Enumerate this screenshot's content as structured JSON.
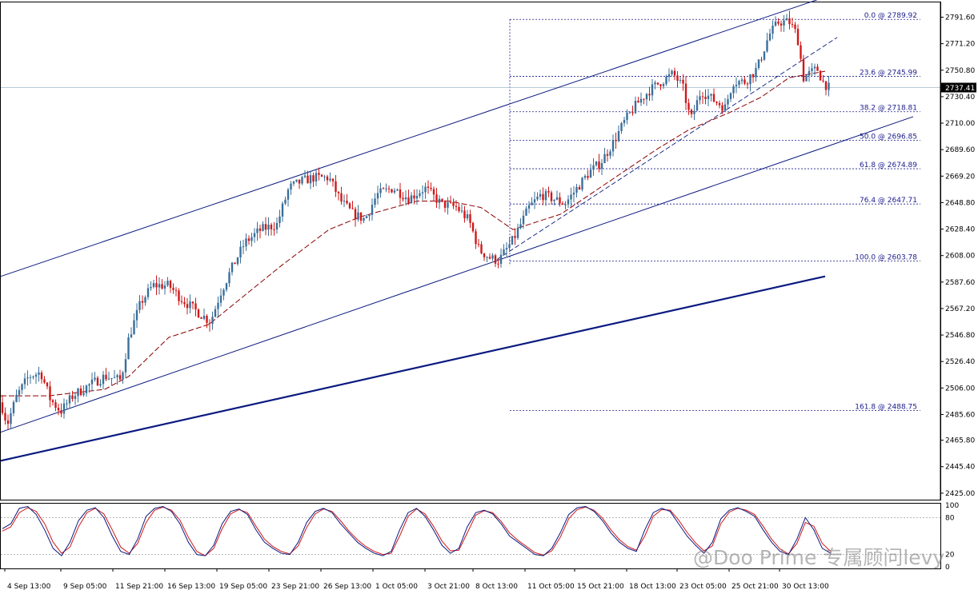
{
  "chart_data": {
    "type": "candlestick",
    "title": "",
    "y_ticks": [
      2791.6,
      2771.2,
      2750.8,
      2730.4,
      2710.0,
      2689.6,
      2669.2,
      2648.8,
      2628.4,
      2608.0,
      2587.6,
      2567.2,
      2546.8,
      2526.4,
      2506.0,
      2485.6,
      2465.8,
      2445.4,
      2425.0
    ],
    "y_range": [
      2420.0,
      2803.0
    ],
    "x_tick_labels": [
      "4 Sep 13:00",
      "9 Sep 05:00",
      "11 Sep 21:00",
      "16 Sep 13:00",
      "19 Sep 05:00",
      "23 Sep 21:00",
      "26 Sep 13:00",
      "1 Oct 05:00",
      "3 Oct 21:00",
      "8 Oct 13:00",
      "11 Oct 05:00",
      "15 Oct 21:00",
      "18 Oct 13:00",
      "23 Oct 05:00",
      "25 Oct 21:00",
      "30 Oct 13:00"
    ],
    "current_price": "2737.41",
    "current_price_value": 2737.41,
    "fibonacci_levels": [
      {
        "label": "0.0 @ 2789.92",
        "price": 2789.92
      },
      {
        "label": "23.6 @ 2745.99",
        "price": 2745.99
      },
      {
        "label": "38.2 @ 2718.81",
        "price": 2718.81
      },
      {
        "label": "50.0 @ 2696.85",
        "price": 2696.85
      },
      {
        "label": "61.8 @ 2674.89",
        "price": 2674.89
      },
      {
        "label": "76.4 @ 2647.71",
        "price": 2647.71
      },
      {
        "label": "100.0 @ 2603.78",
        "price": 2603.78
      },
      {
        "label": "161.8 @ 2488.75",
        "price": 2488.75
      }
    ],
    "price_path": [
      [
        0,
        2495
      ],
      [
        8,
        2478
      ],
      [
        20,
        2500
      ],
      [
        35,
        2515
      ],
      [
        50,
        2518
      ],
      [
        62,
        2497
      ],
      [
        75,
        2488
      ],
      [
        90,
        2500
      ],
      [
        110,
        2508
      ],
      [
        130,
        2515
      ],
      [
        150,
        2512
      ],
      [
        160,
        2545
      ],
      [
        175,
        2572
      ],
      [
        190,
        2585
      ],
      [
        210,
        2585
      ],
      [
        225,
        2575
      ],
      [
        245,
        2565
      ],
      [
        262,
        2557
      ],
      [
        275,
        2580
      ],
      [
        290,
        2600
      ],
      [
        305,
        2618
      ],
      [
        325,
        2628
      ],
      [
        345,
        2632
      ],
      [
        360,
        2660
      ],
      [
        375,
        2665
      ],
      [
        390,
        2668
      ],
      [
        410,
        2668
      ],
      [
        425,
        2650
      ],
      [
        440,
        2640
      ],
      [
        455,
        2636
      ],
      [
        470,
        2655
      ],
      [
        490,
        2660
      ],
      [
        510,
        2652
      ],
      [
        530,
        2660
      ],
      [
        550,
        2648
      ],
      [
        570,
        2645
      ],
      [
        585,
        2635
      ],
      [
        598,
        2612
      ],
      [
        612,
        2606
      ],
      [
        622,
        2604
      ],
      [
        640,
        2620
      ],
      [
        660,
        2645
      ],
      [
        675,
        2655
      ],
      [
        690,
        2652
      ],
      [
        705,
        2648
      ],
      [
        720,
        2660
      ],
      [
        735,
        2672
      ],
      [
        750,
        2680
      ],
      [
        765,
        2695
      ],
      [
        780,
        2712
      ],
      [
        795,
        2725
      ],
      [
        810,
        2735
      ],
      [
        825,
        2742
      ],
      [
        840,
        2748
      ],
      [
        852,
        2738
      ],
      [
        862,
        2712
      ],
      [
        875,
        2735
      ],
      [
        890,
        2728
      ],
      [
        905,
        2722
      ],
      [
        915,
        2742
      ],
      [
        930,
        2742
      ],
      [
        945,
        2752
      ],
      [
        960,
        2778
      ],
      [
        972,
        2788
      ],
      [
        985,
        2788
      ],
      [
        995,
        2778
      ],
      [
        1003,
        2745
      ],
      [
        1010,
        2748
      ],
      [
        1020,
        2752
      ],
      [
        1027,
        2742
      ],
      [
        1035,
        2737
      ]
    ],
    "ma_path": [
      [
        0,
        2500
      ],
      [
        60,
        2500
      ],
      [
        130,
        2505
      ],
      [
        160,
        2515
      ],
      [
        210,
        2545
      ],
      [
        260,
        2555
      ],
      [
        300,
        2575
      ],
      [
        350,
        2600
      ],
      [
        410,
        2628
      ],
      [
        450,
        2638
      ],
      [
        520,
        2650
      ],
      [
        560,
        2650
      ],
      [
        600,
        2645
      ],
      [
        640,
        2628
      ],
      [
        700,
        2640
      ],
      [
        760,
        2665
      ],
      [
        820,
        2690
      ],
      [
        860,
        2705
      ],
      [
        910,
        2718
      ],
      [
        950,
        2730
      ],
      [
        985,
        2745
      ],
      [
        1030,
        2750
      ]
    ],
    "channel_lines": [
      {
        "from": [
          0,
          2592
        ],
        "to": [
          1020,
          2805
        ],
        "style": "solid"
      },
      {
        "from": [
          0,
          2472
        ],
        "to": [
          1140,
          2715
        ],
        "style": "solid"
      },
      {
        "from": [
          0,
          2450
        ],
        "to": [
          1030,
          2592
        ],
        "style": "solid-thick"
      },
      {
        "from": [
          620,
          2605
        ],
        "to": [
          1045,
          2776
        ],
        "style": "dashed"
      }
    ],
    "stochastic": {
      "levels": [
        100,
        80,
        20,
        0
      ],
      "k_values": [
        62,
        70,
        95,
        98,
        85,
        60,
        30,
        18,
        40,
        75,
        92,
        96,
        80,
        50,
        25,
        20,
        45,
        82,
        95,
        98,
        90,
        70,
        40,
        20,
        18,
        35,
        70,
        90,
        94,
        85,
        60,
        40,
        30,
        22,
        20,
        40,
        72,
        90,
        95,
        88,
        70,
        55,
        40,
        30,
        22,
        18,
        25,
        60,
        88,
        95,
        82,
        60,
        35,
        22,
        30,
        65,
        88,
        92,
        86,
        70,
        50,
        40,
        30,
        20,
        18,
        30,
        55,
        85,
        96,
        98,
        90,
        75,
        55,
        40,
        30,
        25,
        60,
        88,
        95,
        90,
        70,
        50,
        35,
        22,
        40,
        78,
        92,
        96,
        90,
        82,
        60,
        40,
        25,
        20,
        45,
        80,
        60,
        30,
        22
      ],
      "d_values": [
        58,
        65,
        88,
        96,
        90,
        70,
        40,
        22,
        32,
        65,
        88,
        95,
        86,
        60,
        32,
        22,
        38,
        72,
        92,
        97,
        92,
        76,
        48,
        25,
        18,
        30,
        62,
        86,
        93,
        88,
        66,
        45,
        33,
        25,
        21,
        34,
        64,
        86,
        94,
        90,
        75,
        58,
        44,
        33,
        25,
        20,
        22,
        50,
        82,
        94,
        86,
        66,
        42,
        26,
        27,
        55,
        84,
        91,
        88,
        74,
        55,
        43,
        33,
        23,
        19,
        26,
        48,
        78,
        93,
        97,
        92,
        79,
        60,
        44,
        33,
        27,
        50,
        82,
        93,
        92,
        76,
        56,
        39,
        26,
        34,
        70,
        89,
        95,
        92,
        85,
        66,
        45,
        29,
        21,
        38,
        72,
        66,
        38,
        25
      ]
    }
  },
  "watermark": "@Doo Prime 专属顾问levy"
}
